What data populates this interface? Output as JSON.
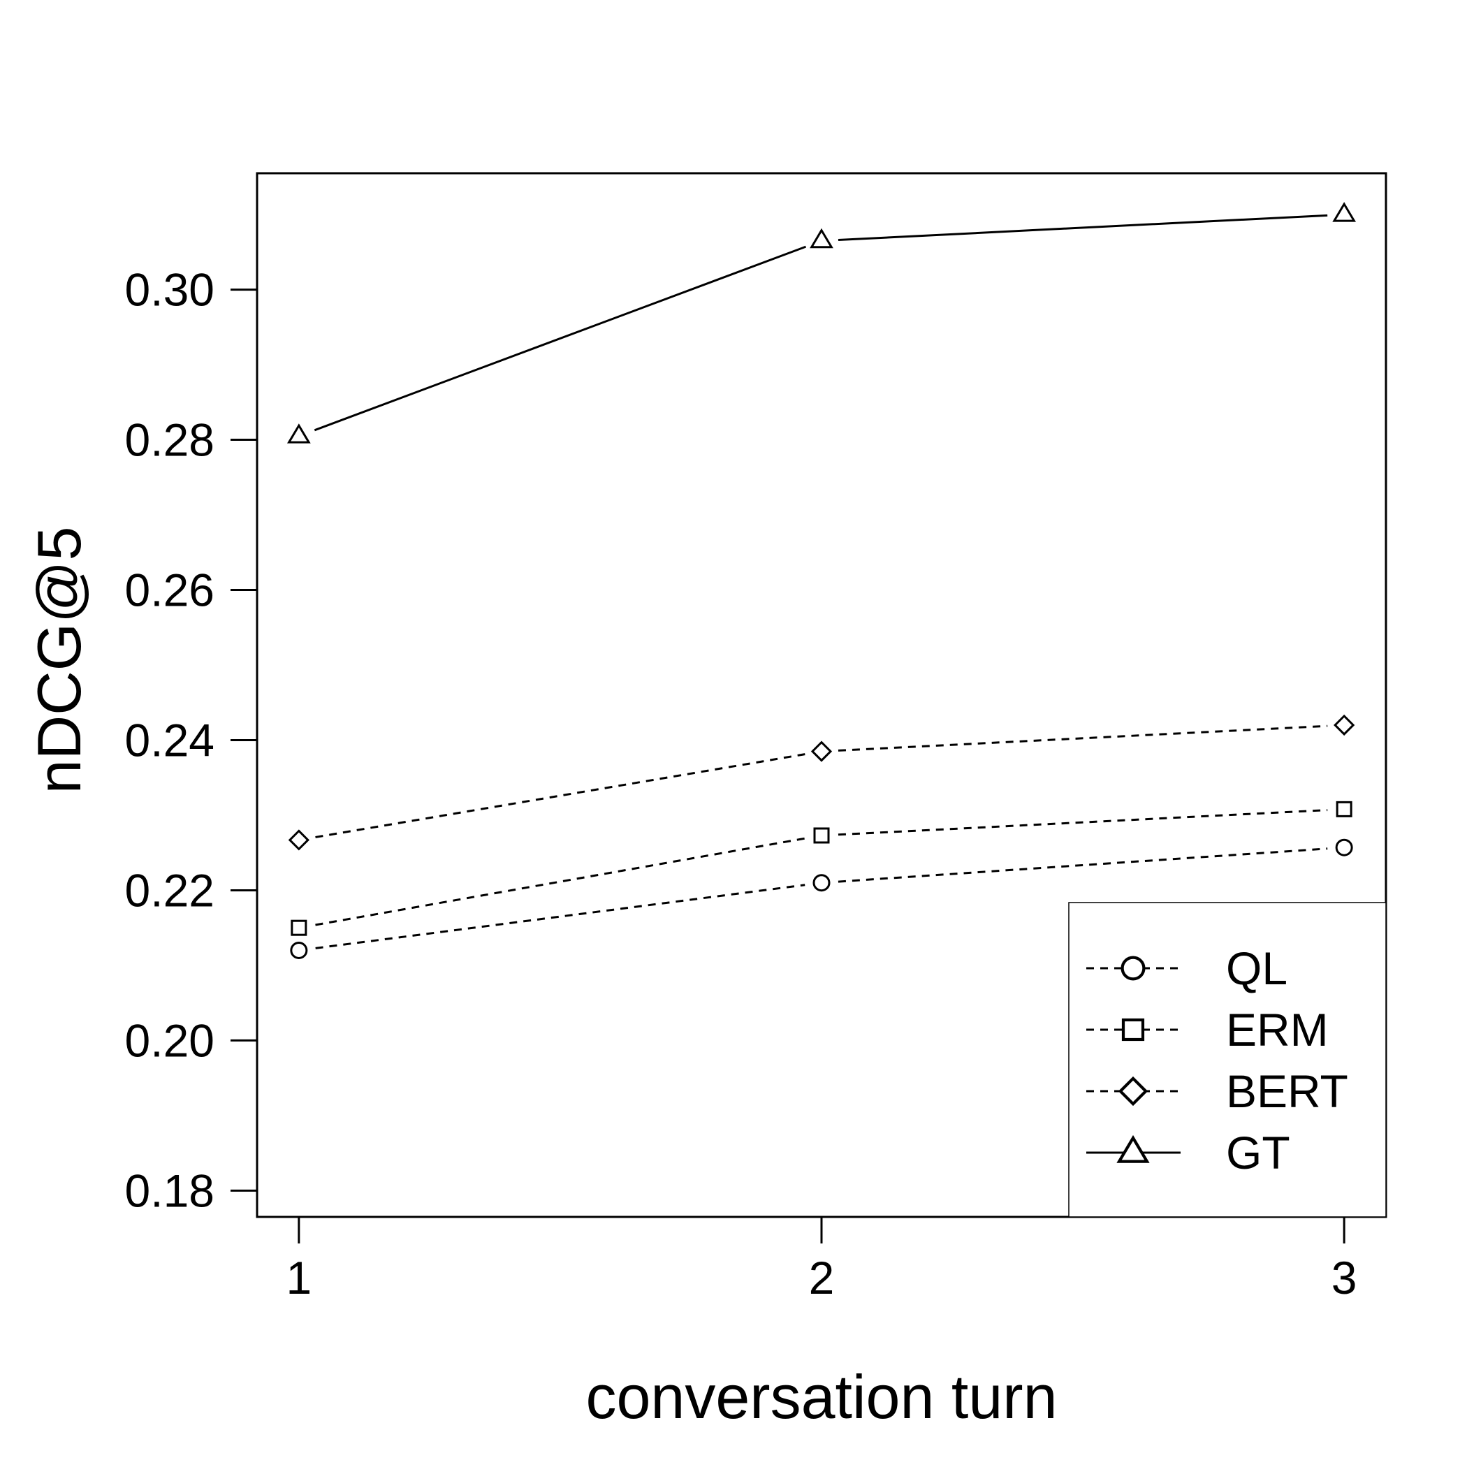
{
  "chart_data": {
    "type": "line",
    "title": "",
    "xlabel": "conversation turn",
    "ylabel": "nDCG@5",
    "x": [
      1,
      2,
      3
    ],
    "xlim": [
      0.92,
      3.08
    ],
    "ylim": [
      0.1765,
      0.3155
    ],
    "x_ticks": [
      1,
      2,
      3
    ],
    "y_ticks": [
      0.18,
      0.2,
      0.22,
      0.24,
      0.26,
      0.28,
      0.3
    ],
    "y_tick_labels": [
      "0.18",
      "0.20",
      "0.22",
      "0.24",
      "0.26",
      "0.28",
      "0.30"
    ],
    "grid": false,
    "legend_position": "bottom-right",
    "series": [
      {
        "name": "QL",
        "values": [
          0.212,
          0.221,
          0.2257
        ],
        "marker": "circle",
        "line": "dashed"
      },
      {
        "name": "ERM",
        "values": [
          0.215,
          0.2273,
          0.2308
        ],
        "marker": "square",
        "line": "dashed"
      },
      {
        "name": "BERT",
        "values": [
          0.2267,
          0.2385,
          0.242
        ],
        "marker": "diamond",
        "line": "dashed"
      },
      {
        "name": "GT",
        "values": [
          0.2805,
          0.3065,
          0.31
        ],
        "marker": "triangle",
        "line": "solid"
      }
    ],
    "colors": {
      "line": "#000000",
      "background": "#ffffff"
    }
  }
}
